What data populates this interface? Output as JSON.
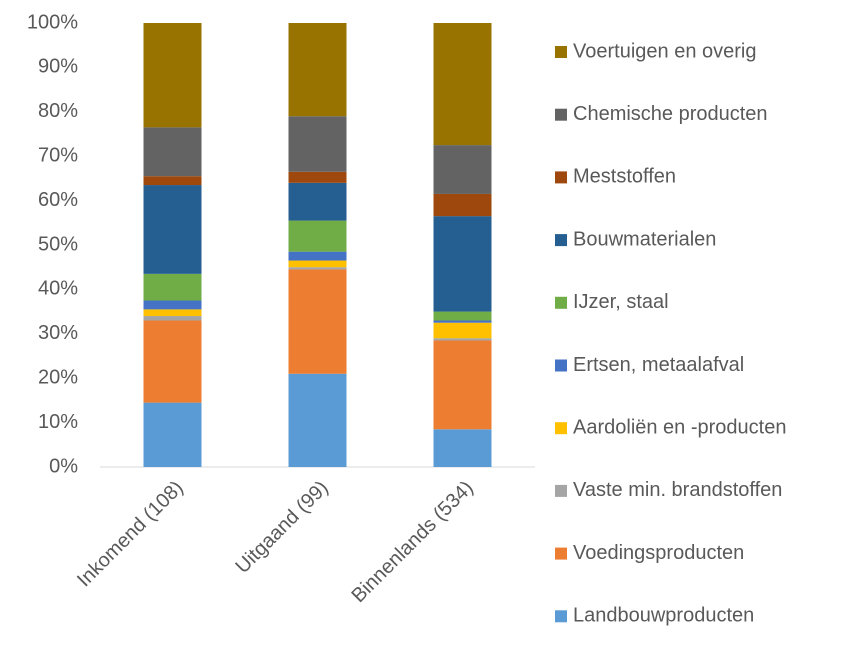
{
  "chart_data": {
    "type": "stacked_bar",
    "categories": [
      "Inkomend (108)",
      "Uitgaand (99)",
      "Binnenlands (534)"
    ],
    "series": [
      {
        "name": "Landbouwproducten",
        "color": "#5b9bd5",
        "values": [
          14.5,
          21,
          8.5
        ]
      },
      {
        "name": "Voedingsproducten",
        "color": "#ed7d31",
        "values": [
          18.5,
          23.5,
          20
        ]
      },
      {
        "name": "Vaste min. brandstoffen",
        "color": "#a5a5a5",
        "values": [
          1,
          0.5,
          0.5
        ]
      },
      {
        "name": "Aardoliën en -producten",
        "color": "#ffc000",
        "values": [
          1.5,
          1.5,
          3.5
        ]
      },
      {
        "name": "Ertsen, metaalafval",
        "color": "#4472c4",
        "values": [
          2,
          2,
          0.5
        ]
      },
      {
        "name": "IJzer, staal",
        "color": "#70ad47",
        "values": [
          6,
          7,
          2
        ]
      },
      {
        "name": "Bouwmaterialen",
        "color": "#255e91",
        "values": [
          20,
          8.5,
          21.5
        ]
      },
      {
        "name": "Meststoffen",
        "color": "#9e480e",
        "values": [
          2,
          2.5,
          5
        ]
      },
      {
        "name": "Chemische producten",
        "color": "#636363",
        "values": [
          11,
          12.5,
          11
        ]
      },
      {
        "name": "Voertuigen en overig",
        "color": "#997300",
        "values": [
          23.5,
          21,
          27.5
        ]
      }
    ],
    "ylim": [
      0,
      100
    ],
    "yticks": [
      {
        "value": 0,
        "label": "0%"
      },
      {
        "value": 10,
        "label": "10%"
      },
      {
        "value": 20,
        "label": "20%"
      },
      {
        "value": 30,
        "label": "30%"
      },
      {
        "value": 40,
        "label": "40%"
      },
      {
        "value": 50,
        "label": "50%"
      },
      {
        "value": 60,
        "label": "60%"
      },
      {
        "value": 70,
        "label": "70%"
      },
      {
        "value": 80,
        "label": "80%"
      },
      {
        "value": 90,
        "label": "90%"
      },
      {
        "value": 100,
        "label": "100%"
      }
    ],
    "grid": false,
    "legend": "right"
  }
}
